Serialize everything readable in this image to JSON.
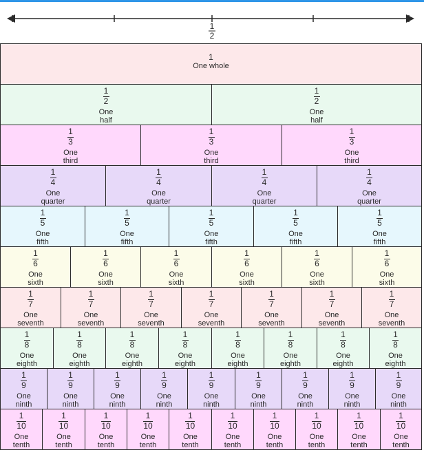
{
  "colors": {
    "top_bar": "#2f96e8",
    "line": "#2b2b2b",
    "rows": [
      "#fde8ea",
      "#e9f9ee",
      "#ffd8fc",
      "#e7d9f9",
      "#e6f7fd",
      "#fcfce9",
      "#fde8ea",
      "#e9f9ee",
      "#e7d9f9",
      "#ffd8fc"
    ]
  },
  "number_line": {
    "label_num": "1",
    "label_den": "2"
  },
  "rows": [
    {
      "denominator": 1,
      "num": "1",
      "den": "",
      "word": "One whole",
      "word_lines": [
        "One whole"
      ]
    },
    {
      "denominator": 2,
      "num": "1",
      "den": "2",
      "word": "One half",
      "word_lines": [
        "One",
        "half"
      ]
    },
    {
      "denominator": 3,
      "num": "1",
      "den": "3",
      "word": "One third",
      "word_lines": [
        "One",
        "third"
      ]
    },
    {
      "denominator": 4,
      "num": "1",
      "den": "4",
      "word": "One quarter",
      "word_lines": [
        "One",
        "quarter"
      ]
    },
    {
      "denominator": 5,
      "num": "1",
      "den": "5",
      "word": "One fifth",
      "word_lines": [
        "One",
        "fifth"
      ]
    },
    {
      "denominator": 6,
      "num": "1",
      "den": "6",
      "word": "One sixth",
      "word_lines": [
        "One",
        "sixth"
      ]
    },
    {
      "denominator": 7,
      "num": "1",
      "den": "7",
      "word": "One seventh",
      "word_lines": [
        "One",
        "seventh"
      ]
    },
    {
      "denominator": 8,
      "num": "1",
      "den": "8",
      "word": "One eighth",
      "word_lines": [
        "One",
        "eighth"
      ]
    },
    {
      "denominator": 9,
      "num": "1",
      "den": "9",
      "word": "One ninth",
      "word_lines": [
        "One",
        "ninth"
      ]
    },
    {
      "denominator": 10,
      "num": "1",
      "den": "10",
      "word": "One tenth",
      "word_lines": [
        "One",
        "tenth"
      ]
    }
  ]
}
